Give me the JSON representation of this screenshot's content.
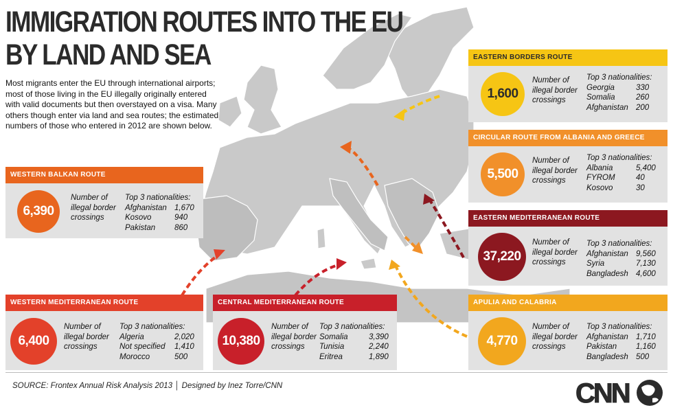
{
  "title_lines": [
    "IMMIGRATION ROUTES INTO THE EU",
    "BY LAND AND SEA"
  ],
  "intro": "Most migrants enter the EU through international airports; most of those living in the EU illegally originally entered with valid documents but then overstayed on a visa. Many others though enter via land and sea routes; the estimated numbers of those who entered in 2012 are shown below.",
  "crossings_label": "Number of illegal border crossings",
  "top3_label": "Top 3 nationalities:",
  "routes": {
    "western_balkan": {
      "name": "WESTERN BALKAN ROUTE",
      "crossings": "6,390",
      "color": "#e8651e",
      "nationalities": [
        [
          "Afghanistan",
          "1,670"
        ],
        [
          "Kosovo",
          "940"
        ],
        [
          "Pakistan",
          "860"
        ]
      ]
    },
    "western_mediterranean": {
      "name": "WESTERN MEDITERRANEAN ROUTE",
      "crossings": "6,400",
      "color": "#e3412a",
      "nationalities": [
        [
          "Algeria",
          "2,020"
        ],
        [
          "Not specified",
          "1,410"
        ],
        [
          "Morocco",
          "500"
        ]
      ]
    },
    "central_mediterranean": {
      "name": "CENTRAL MEDITERRANEAN ROUTE",
      "crossings": "10,380",
      "color": "#c8202a",
      "nationalities": [
        [
          "Somalia",
          "3,390"
        ],
        [
          "Tunisia",
          "2,240"
        ],
        [
          "Eritrea",
          "1,890"
        ]
      ]
    },
    "eastern_borders": {
      "name": "EASTERN BORDERS ROUTE",
      "crossings": "1,600",
      "color": "#f6c514",
      "nationalities": [
        [
          "Georgia",
          "330"
        ],
        [
          "Somalia",
          "260"
        ],
        [
          "Afghanistan",
          "200"
        ]
      ]
    },
    "circular": {
      "name": "CIRCULAR ROUTE FROM ALBANIA AND GREECE",
      "crossings": "5,500",
      "color": "#f1902a",
      "nationalities": [
        [
          "Albania",
          "5,400"
        ],
        [
          "FYROM",
          "40"
        ],
        [
          "Kosovo",
          "30"
        ]
      ]
    },
    "eastern_mediterranean": {
      "name": "EASTERN MEDITERRANEAN ROUTE",
      "crossings": "37,220",
      "color": "#8c1820",
      "nationalities": [
        [
          "Afghanistan",
          "9,560"
        ],
        [
          "Syria",
          "7,130"
        ],
        [
          "Bangladesh",
          "4,600"
        ]
      ]
    },
    "apulia_calabria": {
      "name": "APULIA AND CALABRIA",
      "crossings": "4,770",
      "color": "#f2a71e",
      "nationalities": [
        [
          "Afghanistan",
          "1,710"
        ],
        [
          "Pakistan",
          "1,160"
        ],
        [
          "Bangladesh",
          "500"
        ]
      ]
    }
  },
  "source": "SOURCE: Frontex Annual Risk Analysis 2013 │ Designed by Inez Torre/CNN",
  "logo": "CNN",
  "colors": {
    "land": "#c8c8c8",
    "land_dark": "#b5b5b5",
    "sea": "#ffffff",
    "panel_bg": "#e2e2e2",
    "title": "#2b2b2b"
  }
}
